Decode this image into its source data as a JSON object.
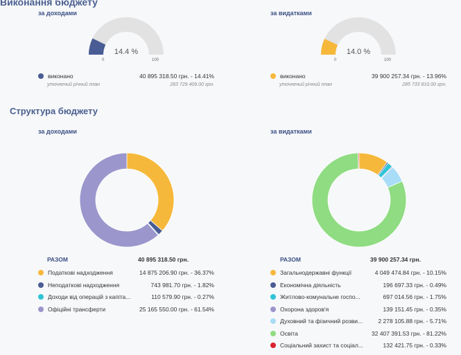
{
  "execution": {
    "title": "Виконання бюджету",
    "income": {
      "subtitle": "за доходами",
      "percent_label": "14.4 %",
      "tick_min": "0",
      "tick_max": "100",
      "legend_label": "виконано",
      "legend_value": "40 895 318.50 грн. - 14.41%",
      "plan_label": "уточнений річний план",
      "plan_value": "283 729 409.00 грн.",
      "color": "#4a5c94",
      "fraction": 0.144
    },
    "expense": {
      "subtitle": "за видатками",
      "percent_label": "14.0 %",
      "tick_min": "0",
      "tick_max": "100",
      "legend_label": "виконано",
      "legend_value": "39 900 257.34 грн. - 13.96%",
      "plan_label": "уточнений річний план",
      "plan_value": "285 733 810.00 грн.",
      "color": "#f6b83b",
      "fraction": 0.14
    }
  },
  "structure": {
    "title": "Структура бюджету",
    "income": {
      "subtitle": "за доходами",
      "total_label": "РАЗОМ",
      "total_value": "40 895 318.50 грн."
    },
    "expense": {
      "subtitle": "за видатками",
      "total_label": "РАЗОМ",
      "total_value": "39 900 257.34 грн."
    }
  },
  "chart_data": [
    {
      "type": "gauge",
      "title": "за доходами",
      "value": 14.4,
      "range": [
        0,
        100
      ]
    },
    {
      "type": "gauge",
      "title": "за видатками",
      "value": 14.0,
      "range": [
        0,
        100
      ]
    },
    {
      "type": "pie",
      "title": "за доходами",
      "series": [
        {
          "name": "Податкові надходження",
          "value_label": "14 875 206.90 грн. - 36.37%",
          "percent": 36.37,
          "color": "#f6b83b"
        },
        {
          "name": "Неподаткові надходження",
          "value_label": "743 981.70 грн. - 1.82%",
          "percent": 1.82,
          "color": "#4a5c94"
        },
        {
          "name": "Доходи від операцій з капіта...",
          "value_label": "110 579.90 грн. - 0.27%",
          "percent": 0.27,
          "color": "#2ec4d6"
        },
        {
          "name": "Офіційні трансферти",
          "value_label": "25 165 550.00 грн. - 61.54%",
          "percent": 61.54,
          "color": "#9b96cc"
        }
      ]
    },
    {
      "type": "pie",
      "title": "за видатками",
      "series": [
        {
          "name": "Загальнодержавні функції",
          "value_label": "4 049 474.84 грн. - 10.15%",
          "percent": 10.15,
          "color": "#f6b83b"
        },
        {
          "name": "Економічна діяльність",
          "value_label": "196 697.33 грн. - 0.49%",
          "percent": 0.49,
          "color": "#4a5c94"
        },
        {
          "name": "Житлово-комунальне госпо...",
          "value_label": "697 014.56 грн. - 1.75%",
          "percent": 1.75,
          "color": "#2ec4d6"
        },
        {
          "name": "Охорона здоров'я",
          "value_label": "139 151.45 грн. - 0.35%",
          "percent": 0.35,
          "color": "#9b96cc"
        },
        {
          "name": "Духовний та фізичний розви...",
          "value_label": "2 278 105.88 грн. - 5.71%",
          "percent": 5.71,
          "color": "#a8dcf7"
        },
        {
          "name": "Освіта",
          "value_label": "32 407 391.53 грн. - 81.22%",
          "percent": 81.22,
          "color": "#8fdc82"
        },
        {
          "name": "Соціальний захист та соціал...",
          "value_label": "132 421.75 грн. - 0.33%",
          "percent": 0.33,
          "color": "#d9232e"
        }
      ]
    }
  ]
}
